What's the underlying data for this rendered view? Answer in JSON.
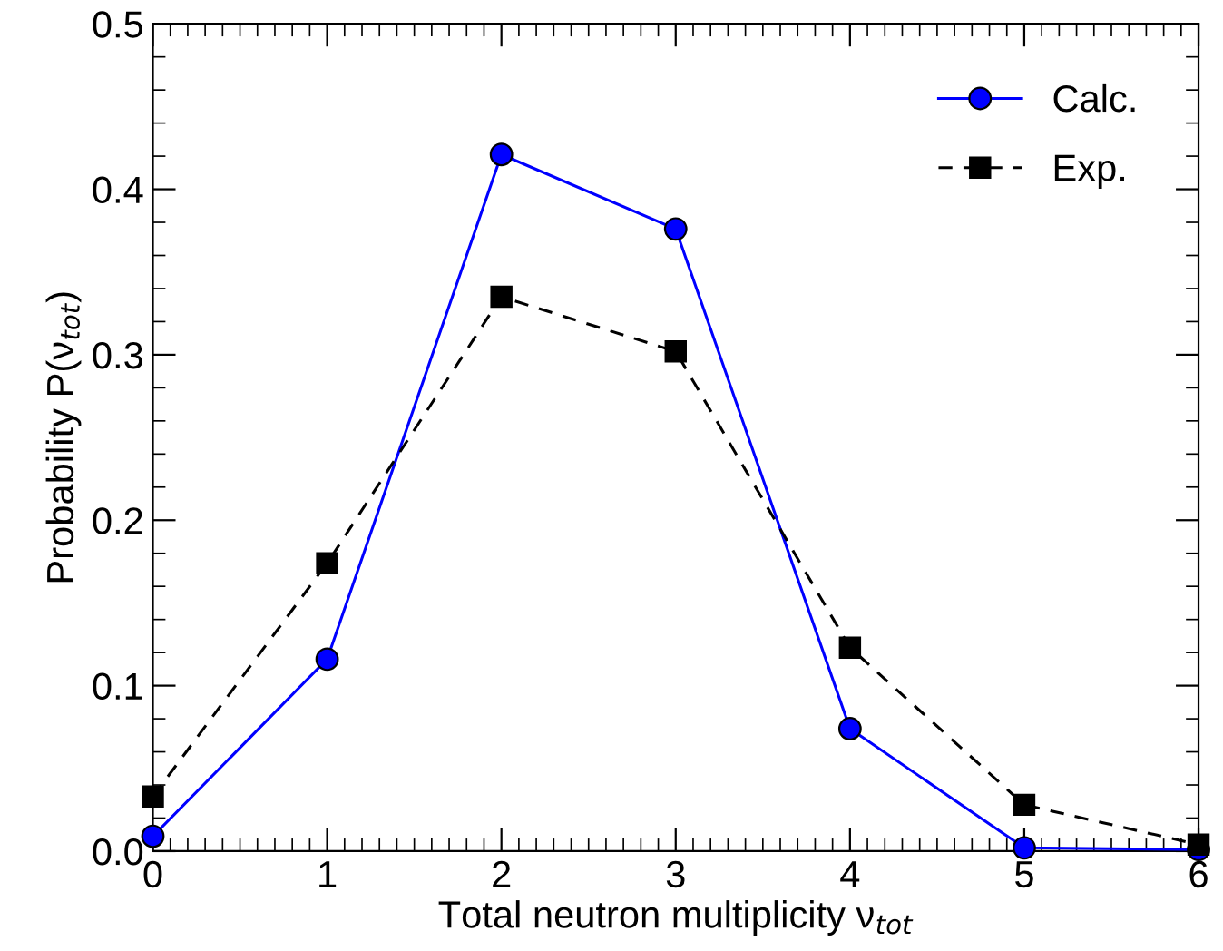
{
  "chart_data": {
    "type": "line",
    "xlabel": "Total neutron multiplicity ν$_{tot}$",
    "ylabel": "Probability P(ν$_{tot}$)",
    "x": [
      0,
      1,
      2,
      3,
      4,
      5,
      6
    ],
    "series": [
      {
        "name": "Calc.",
        "color": "#0000ff",
        "values": [
          0.009,
          0.116,
          0.421,
          0.376,
          0.074,
          0.002,
          0.001
        ],
        "marker": "circle",
        "line_style": "solid"
      },
      {
        "name": "Exp.",
        "color": "#000000",
        "values": [
          0.033,
          0.174,
          0.335,
          0.302,
          0.123,
          0.028,
          0.004
        ],
        "marker": "square",
        "line_style": "dashed"
      }
    ],
    "xlim": [
      0,
      6
    ],
    "xticks": [
      0,
      1,
      2,
      3,
      4,
      5,
      6
    ],
    "ylim": [
      0,
      0.5
    ],
    "yticks": [
      {
        "value": 0,
        "label": "0.0"
      },
      {
        "value": 0.1,
        "label": "0.1"
      },
      {
        "value": 0.2,
        "label": "0.2"
      },
      {
        "value": 0.3,
        "label": "0.3"
      },
      {
        "value": 0.4,
        "label": "0.4"
      },
      {
        "value": 0.5,
        "label": "0.5"
      }
    ],
    "legend": "top right",
    "grid": false
  }
}
